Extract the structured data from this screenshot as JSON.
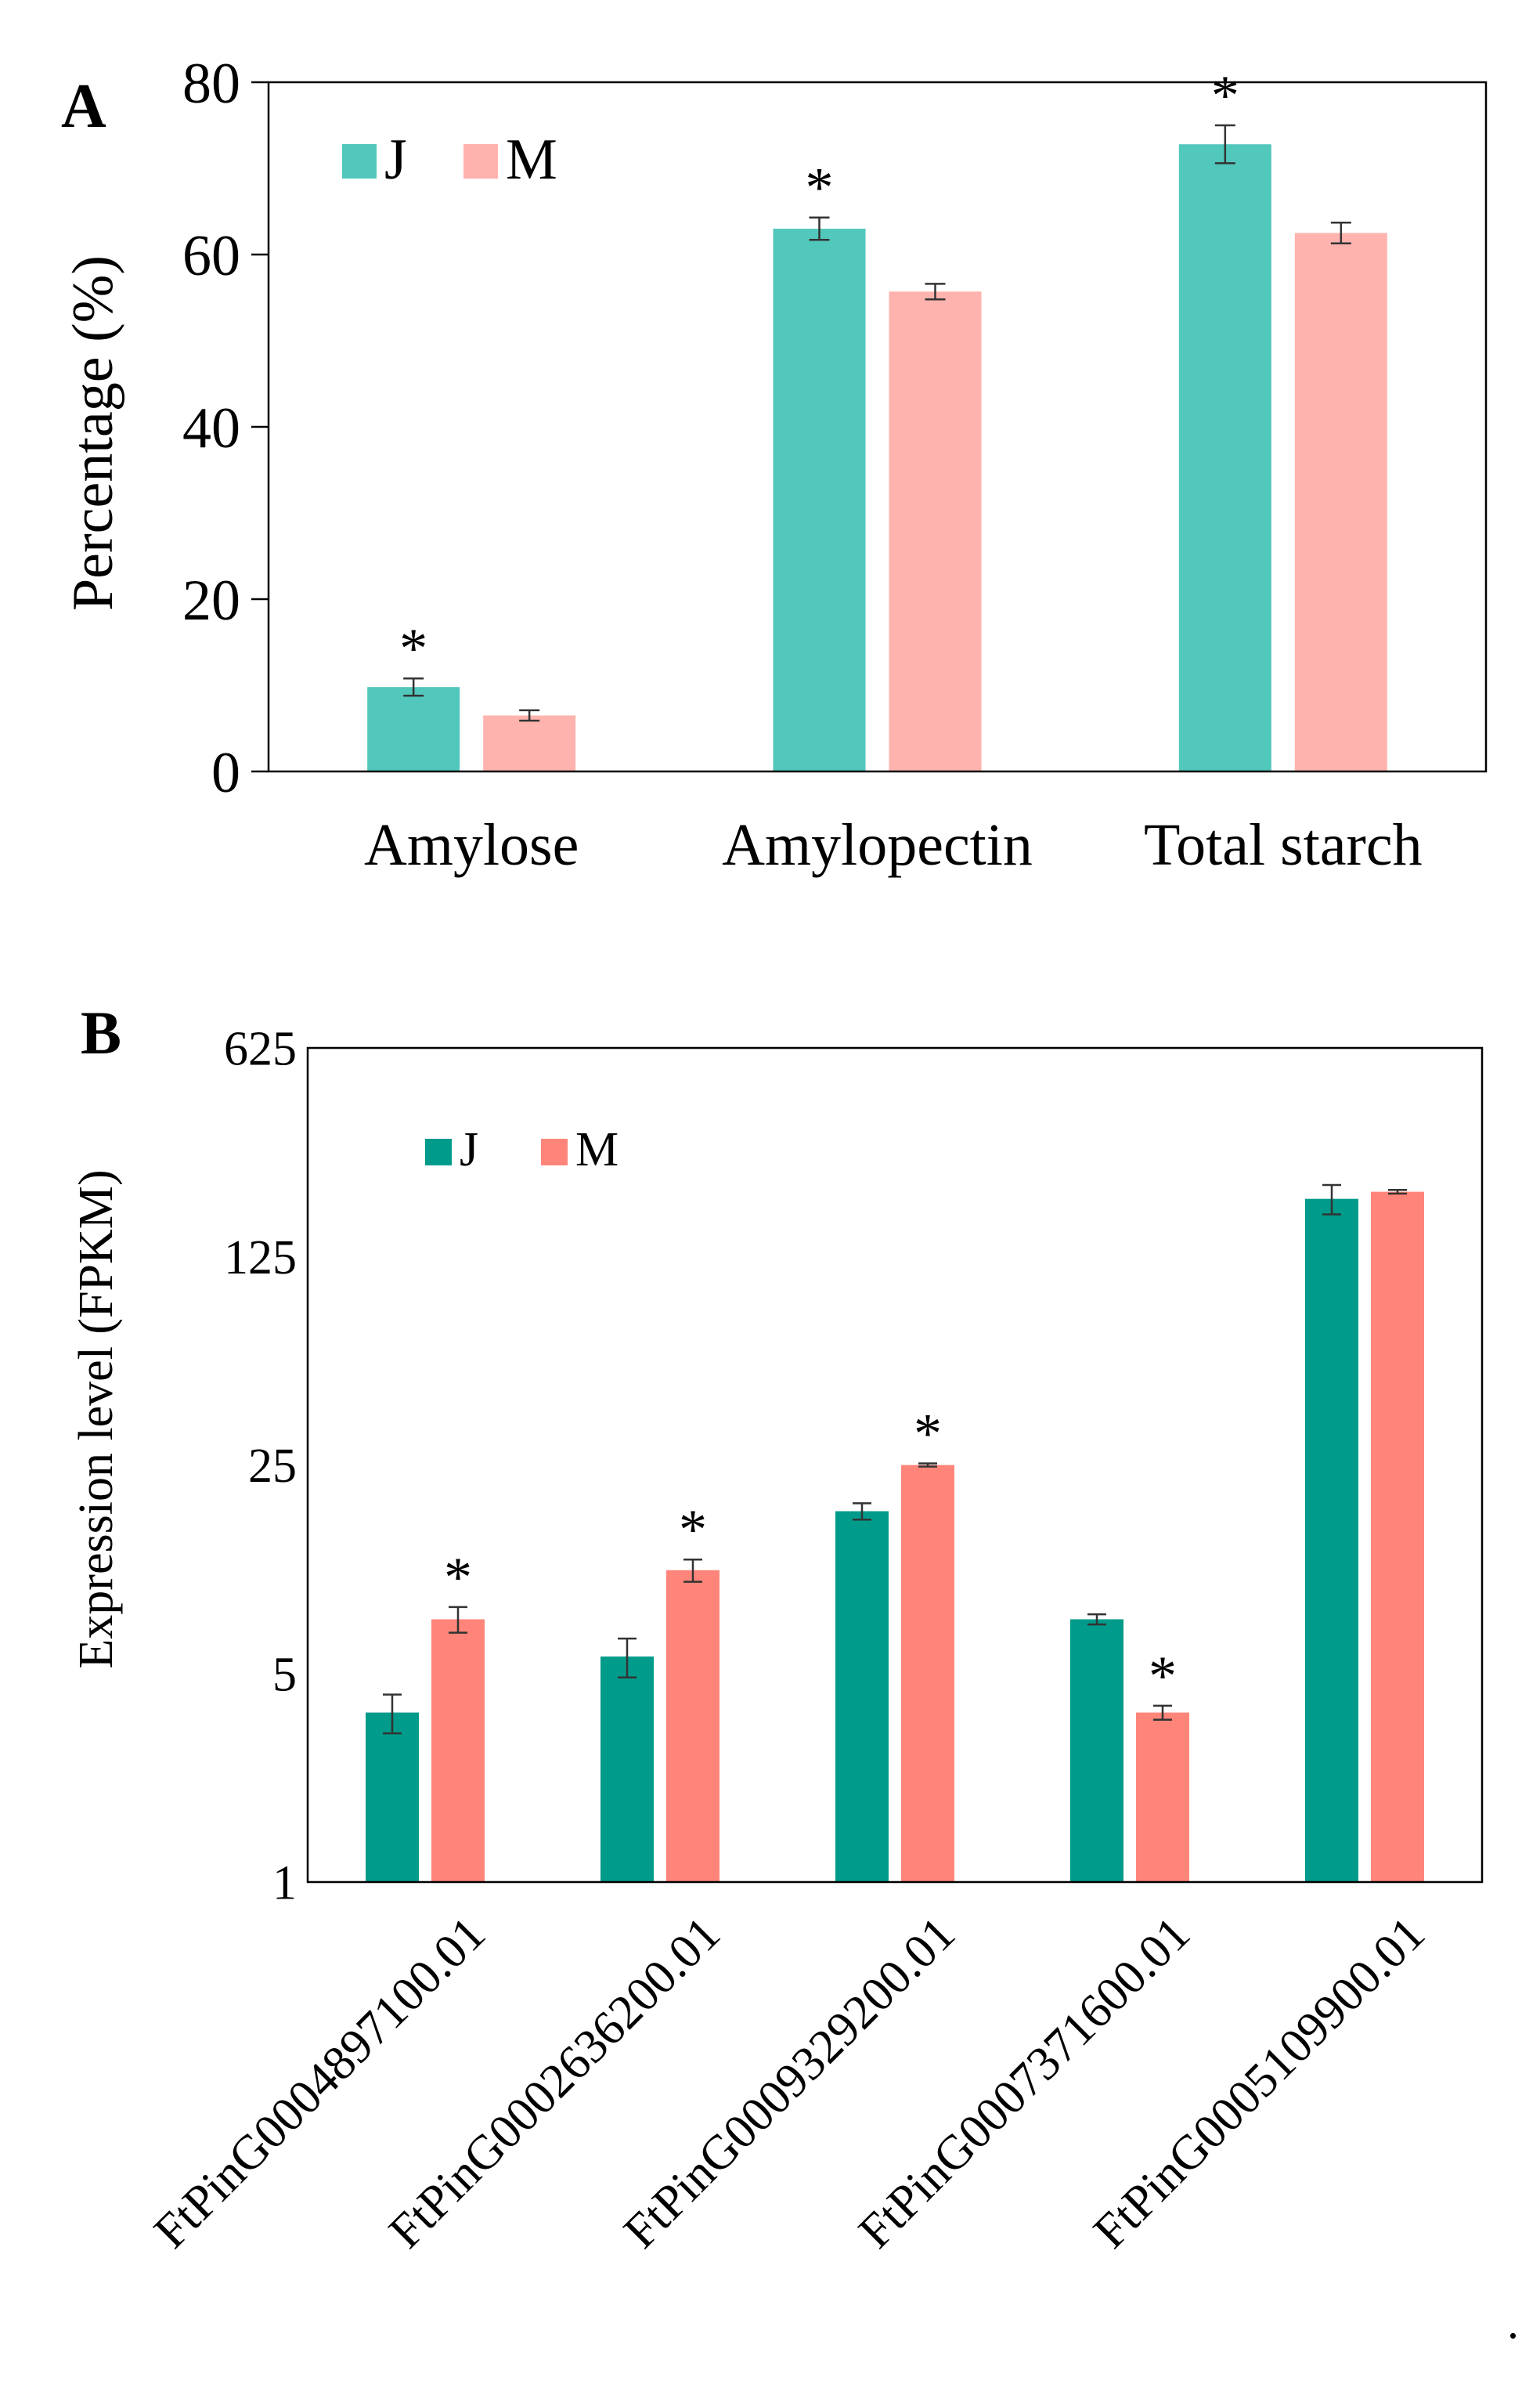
{
  "colors": {
    "a_J": "#52c7bc",
    "a_M": "#ffb3ae",
    "b_J": "#009b8a",
    "b_M": "#ff857a",
    "axis": "#000000",
    "errorbar": "#333333"
  },
  "trailing_mark": ".",
  "chart_data": [
    {
      "panel": "A",
      "type": "bar",
      "ylabel": "Percentage (%)",
      "xlabel": "",
      "ylim": [
        0,
        80
      ],
      "yticks": [
        0,
        20,
        40,
        60,
        80
      ],
      "y_tick_labels": [
        "0",
        "20",
        "40",
        "60",
        "80"
      ],
      "categories": [
        "Amylose",
        "Amylopectin",
        "Total starch"
      ],
      "legend_position": "top-left",
      "grid": false,
      "series": [
        {
          "name": "J",
          "color_key": "a_J",
          "values": [
            9.8,
            63.0,
            72.8
          ],
          "errors": [
            1.0,
            1.3,
            2.2
          ],
          "significant": [
            true,
            true,
            true
          ]
        },
        {
          "name": "M",
          "color_key": "a_M",
          "values": [
            6.5,
            55.7,
            62.5
          ],
          "errors": [
            0.6,
            0.9,
            1.2
          ],
          "significant": [
            false,
            false,
            false
          ]
        }
      ],
      "significance_mark": "*"
    },
    {
      "panel": "B",
      "type": "bar",
      "ylabel": "Expression level (FPKM)",
      "xlabel": "",
      "yscale": "log",
      "ylim": [
        1,
        625
      ],
      "yticks": [
        1,
        5,
        25,
        125,
        625
      ],
      "y_tick_labels": [
        "1",
        "5",
        "25",
        "125",
        "625"
      ],
      "categories": [
        "FtPinG0004897100.01",
        "FtPinG0002636200.01",
        "FtPinG0009329200.01",
        "FtPinG0007371600.01",
        "FtPinG0005109900.01"
      ],
      "legend_position": "top-left",
      "grid": false,
      "series": [
        {
          "name": "J",
          "color_key": "b_J",
          "values": [
            3.7,
            5.7,
            17.5,
            7.6,
            195
          ],
          "errors": [
            0.55,
            0.85,
            1.1,
            0.3,
            22
          ],
          "significant": [
            false,
            false,
            false,
            false,
            false
          ]
        },
        {
          "name": "M",
          "color_key": "b_M",
          "values": [
            7.6,
            11.1,
            25.0,
            3.7,
            206
          ],
          "errors": [
            0.75,
            0.95,
            0.3,
            0.2,
            3
          ],
          "significant": [
            true,
            true,
            true,
            true,
            false
          ]
        }
      ],
      "significance_mark": "*"
    }
  ]
}
